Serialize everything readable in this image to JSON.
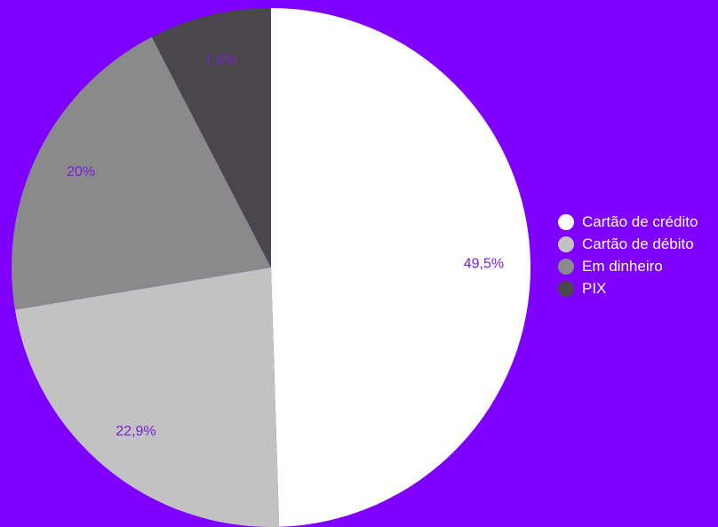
{
  "colors": {
    "background": "#7f00ff",
    "label_text": "#7a1fd6",
    "legend_text": "#ffffff"
  },
  "chart_data": {
    "type": "pie",
    "categories": [
      "Cartão de crédito",
      "Cartão de débito",
      "Em dinheiro",
      "PIX"
    ],
    "values": [
      49.5,
      22.9,
      20,
      7.6
    ],
    "value_labels": [
      "49,5%",
      "22,9%",
      "20%",
      "7,6%"
    ],
    "colors": [
      "#ffffff",
      "#c2c2c2",
      "#8a8a8a",
      "#4a474b"
    ],
    "start_angle": "12 o'clock",
    "direction": "clockwise",
    "legend_position": "right"
  }
}
